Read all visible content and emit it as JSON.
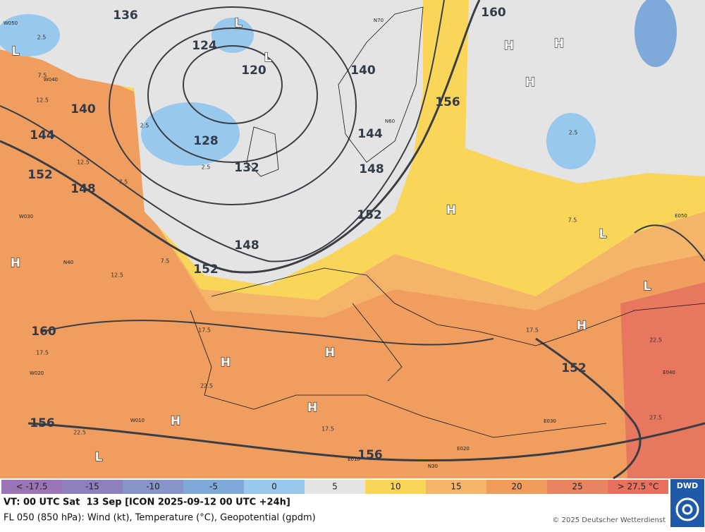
{
  "legend": {
    "items": [
      {
        "label": "< -17.5",
        "color": "#9a74b6"
      },
      {
        "label": "-15",
        "color": "#8d80bc"
      },
      {
        "label": "-10",
        "color": "#8794c8"
      },
      {
        "label": "-5",
        "color": "#7fa9d8"
      },
      {
        "label": "0",
        "color": "#98c9ed"
      },
      {
        "label": "5",
        "color": "#e4e4e4"
      },
      {
        "label": "10",
        "color": "#f9d65a"
      },
      {
        "label": "15",
        "color": "#f4b56a"
      },
      {
        "label": "20",
        "color": "#ef9c5c"
      },
      {
        "label": "25",
        "color": "#e98461"
      },
      {
        "label": "> 27.5 °C",
        "color": "#e8705e"
      }
    ]
  },
  "logo": "DWD",
  "footer": {
    "valid_time": "VT: 00 UTC Sat  13 Sep [ICON 2025-09-12 00 UTC +24h]",
    "description": "FL 050 (850 hPa): Wind (kt), Temperature (°C), Geopotential (gpdm)",
    "copyright": "© 2025 Deutscher Wetterdienst"
  },
  "map": {
    "contour_labels": [
      "136",
      "124",
      "120",
      "128",
      "132",
      "140",
      "144",
      "152",
      "148",
      "148",
      "152",
      "160",
      "156",
      "156",
      "152",
      "152",
      "148",
      "144",
      "140",
      "156",
      "160"
    ],
    "pressure_centers": [
      "L",
      "L",
      "L",
      "H",
      "H",
      "H",
      "H",
      "L",
      "L",
      "H",
      "H",
      "H",
      "H",
      "H",
      "L",
      "H"
    ],
    "isotherm_labels": [
      "2.5",
      "7.5",
      "12.5",
      "7.5",
      "12.5",
      "2.5",
      "7.5",
      "12.5",
      "17.5",
      "22.5",
      "17.5",
      "22.5",
      "17.5",
      "17.5",
      "22.5",
      "27.5",
      "2.5",
      "2.5",
      "7.5"
    ],
    "grid_labels": [
      "W050",
      "W040",
      "W030",
      "N40",
      "W020",
      "W010",
      "N70",
      "N60",
      "E050",
      "E040",
      "E030",
      "E020",
      "E010",
      "N30"
    ]
  }
}
